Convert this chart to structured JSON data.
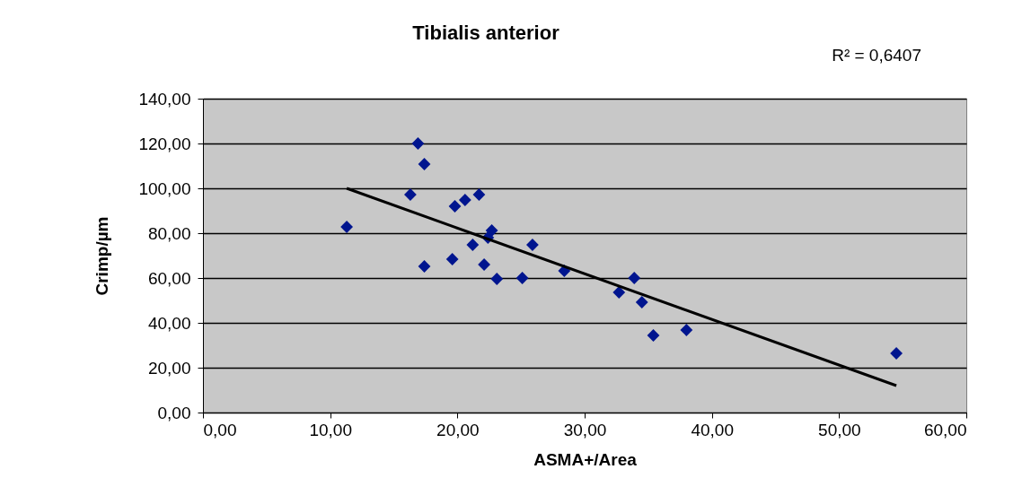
{
  "chart_data": {
    "type": "scatter",
    "title": "Tibialis anterior",
    "xlabel": "ASMA+/Area",
    "ylabel": "Crimp/µm",
    "annotations": [
      "R² = 0,6407"
    ],
    "xlim": [
      0,
      60
    ],
    "ylim": [
      0,
      140
    ],
    "xticks": [
      {
        "value": 0,
        "label": "0,00"
      },
      {
        "value": 10,
        "label": "10,00"
      },
      {
        "value": 20,
        "label": "20,00"
      },
      {
        "value": 30,
        "label": "30,00"
      },
      {
        "value": 40,
        "label": "40,00"
      },
      {
        "value": 50,
        "label": "50,00"
      },
      {
        "value": 60,
        "label": "60,00"
      }
    ],
    "yticks": [
      {
        "value": 0,
        "label": "0,00"
      },
      {
        "value": 20,
        "label": "20,00"
      },
      {
        "value": 40,
        "label": "40,00"
      },
      {
        "value": 60,
        "label": "60,00"
      },
      {
        "value": 80,
        "label": "80,00"
      },
      {
        "value": 100,
        "label": "100,00"
      },
      {
        "value": 120,
        "label": "120,00"
      },
      {
        "value": 140,
        "label": "140,00"
      }
    ],
    "grid": "y",
    "legend": false,
    "marker": "diamond",
    "series": [
      {
        "color": "#00158f",
        "x": [
          11.3,
          16.9,
          17.4,
          16.3,
          17.4,
          19.6,
          19.8,
          20.6,
          21.7,
          21.2,
          22.1,
          22.7,
          22.4,
          23.1,
          25.1,
          25.9,
          28.4,
          32.7,
          33.9,
          34.5,
          35.4,
          38.0,
          54.5
        ],
        "values": [
          82.8,
          120,
          110.8,
          97.2,
          65.2,
          68.4,
          92,
          94.8,
          97.2,
          74.8,
          66,
          81.2,
          78,
          59.6,
          60,
          74.8,
          63.2,
          53.6,
          60,
          49.2,
          34.4,
          36.8,
          26.4
        ]
      },
      {
        "type": "line",
        "color": "#000000",
        "line_style": "solid",
        "marker": "none",
        "x": [
          11.3,
          54.5
        ],
        "values": [
          100,
          12
        ]
      }
    ]
  }
}
